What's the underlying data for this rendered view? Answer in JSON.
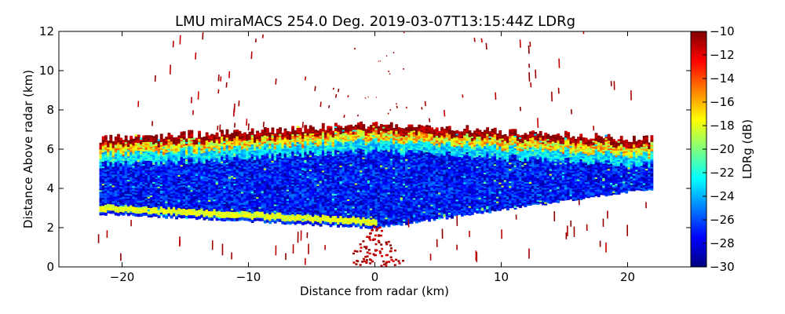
{
  "chart_data": {
    "type": "heatmap",
    "title": "LMU miraMACS 254.0 Deg. 2019-03-07T13:15:44Z  LDRg",
    "xlabel": "Distance from radar (km)",
    "ylabel": "Distance Above radar  (km)",
    "colorbar_label": "LDRg (dB)",
    "xlim": [
      -25,
      25
    ],
    "ylim": [
      0,
      12
    ],
    "clim": [
      -30,
      -10
    ],
    "x_ticks": [
      -20,
      -10,
      0,
      10,
      20
    ],
    "x_tick_labels": [
      "−20",
      "−10",
      "0",
      "10",
      "20"
    ],
    "y_ticks": [
      0,
      2,
      4,
      6,
      8,
      10,
      12
    ],
    "y_tick_labels": [
      "0",
      "2",
      "4",
      "6",
      "8",
      "10",
      "12"
    ],
    "colorbar_ticks": [
      -30,
      -28,
      -26,
      -24,
      -22,
      -20,
      -18,
      -16,
      -14,
      -12,
      -10
    ],
    "colorbar_tick_labels": [
      "−30",
      "−28",
      "−26",
      "−24",
      "−22",
      "−20",
      "−18",
      "−16",
      "−14",
      "−12",
      "−10"
    ],
    "colormap": "jet",
    "colormap_stops": [
      "#00007f",
      "#0000ff",
      "#007fff",
      "#00ffff",
      "#7fff7f",
      "#ffff00",
      "#ff7f00",
      "#ff0000",
      "#7f0000"
    ],
    "scan": {
      "elevation_deg": 254.0,
      "max_range_km": 22,
      "left_edge_x_km": -21.8,
      "right_edge_x_km": 21.8,
      "cloud_top_center_km": 7.2,
      "cloud_top_edge_km": 6.5,
      "cloud_base_center_km": 2.0,
      "cloud_base_left_km": 2.7,
      "cloud_base_right_km": 3.9,
      "melting_layer_ldr_db": -19,
      "cloud_core_ldr_db": -28,
      "noise_ldr_db": -10
    }
  }
}
